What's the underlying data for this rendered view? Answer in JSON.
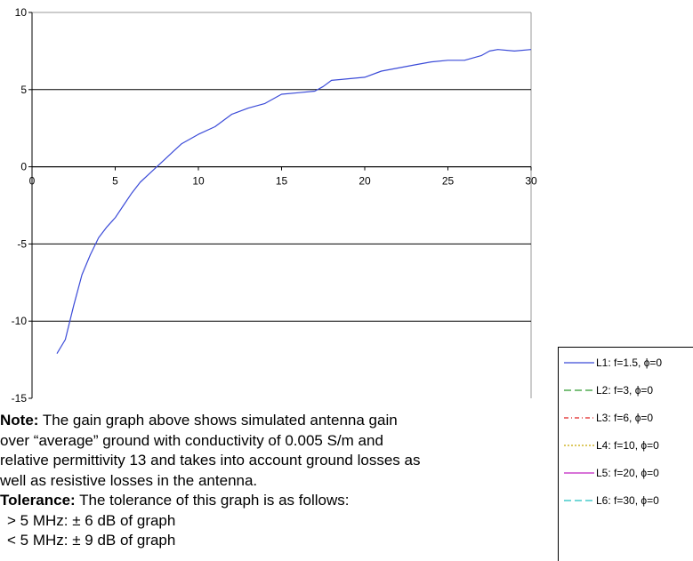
{
  "chart_data": {
    "type": "line",
    "x_ticks": [
      "0",
      "5",
      "10",
      "15",
      "20",
      "25",
      "30"
    ],
    "y_ticks": [
      "10",
      "5",
      "0",
      "-5",
      "-10",
      "-15"
    ],
    "xlim": [
      0,
      30
    ],
    "ylim": [
      -15,
      10
    ],
    "grid": "horizontal",
    "legend": "bottom-right",
    "series": [
      {
        "name": "L1: f=1.5, ϕ=0",
        "color": "#3b4bd8",
        "x": [
          1.5,
          2,
          2.5,
          3,
          3.5,
          4,
          4.5,
          5,
          5.5,
          6,
          6.5,
          7,
          7.5,
          8,
          8.5,
          9,
          10,
          11,
          12,
          13,
          14,
          15,
          16,
          17,
          17.5,
          18,
          19,
          20,
          21,
          22,
          23,
          24,
          25,
          26,
          27,
          27.5,
          28,
          29,
          30
        ],
        "y": [
          -12.1,
          -11.2,
          -9,
          -7,
          -5.7,
          -4.6,
          -3.9,
          -3.3,
          -2.5,
          -1.7,
          -1.0,
          -0.5,
          0,
          0.5,
          1.0,
          1.5,
          2.1,
          2.6,
          3.4,
          3.8,
          4.1,
          4.7,
          4.8,
          4.9,
          5.2,
          5.6,
          5.7,
          5.8,
          6.2,
          6.4,
          6.6,
          6.8,
          6.9,
          6.9,
          7.2,
          7.5,
          7.6,
          7.5,
          7.6
        ]
      },
      {
        "name": "L2: f=3, ϕ=0",
        "color": "#2e9a2e",
        "dash": "8,4"
      },
      {
        "name": "L3: f=6, ϕ=0",
        "color": "#e02020",
        "dash": "5,3,1,3"
      },
      {
        "name": "L4: f=10, ϕ=0",
        "color": "#c8a800",
        "dash": "2,2"
      },
      {
        "name": "L5: f=20, ϕ=0",
        "color": "#c020c0"
      },
      {
        "name": "L6: f=30, ϕ=0",
        "color": "#20c0c0",
        "dash": "8,4"
      }
    ]
  },
  "note": {
    "bold": "Note:",
    "line1": " The gain graph above shows simulated antenna gain",
    "line2": "over “average” ground with conductivity of 0.005 S/m and",
    "line3": "relative permittivity 13 and takes into account ground losses as",
    "line4": "well as resistive losses in the antenna."
  },
  "tolerance": {
    "bold": "Tolerance:",
    "line1": " The tolerance of this graph is as follows:",
    "item1": "> 5 MHz: ± 6 dB of graph",
    "item2": "< 5 MHz: ± 9 dB of graph"
  }
}
